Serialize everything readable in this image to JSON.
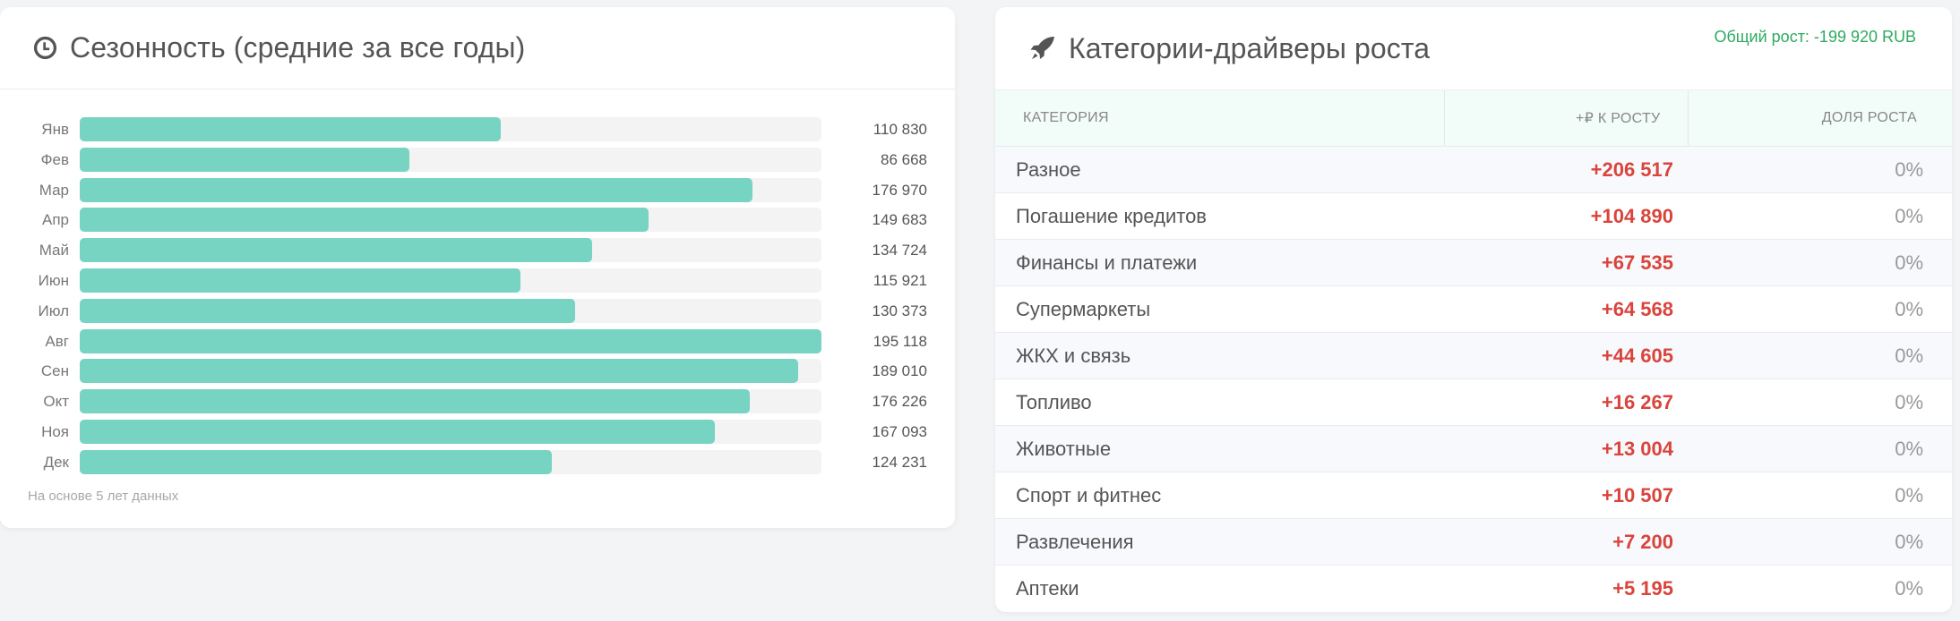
{
  "seasonality": {
    "title": "Сезонность (средние за все годы)",
    "icon": "clock-icon",
    "footnote": "На основе 5 лет данных",
    "bar_color": "#77d3c2",
    "track_color": "#f3f3f3",
    "max_value": 195118,
    "rows": [
      {
        "label": "Янв",
        "value": 110830,
        "display": "110 830"
      },
      {
        "label": "Фев",
        "value": 86668,
        "display": "86 668"
      },
      {
        "label": "Мар",
        "value": 176970,
        "display": "176 970"
      },
      {
        "label": "Апр",
        "value": 149683,
        "display": "149 683"
      },
      {
        "label": "Май",
        "value": 134724,
        "display": "134 724"
      },
      {
        "label": "Июн",
        "value": 115921,
        "display": "115 921"
      },
      {
        "label": "Июл",
        "value": 130373,
        "display": "130 373"
      },
      {
        "label": "Авг",
        "value": 195118,
        "display": "195 118"
      },
      {
        "label": "Сен",
        "value": 189010,
        "display": "189 010"
      },
      {
        "label": "Окт",
        "value": 176226,
        "display": "176 226"
      },
      {
        "label": "Ноя",
        "value": 167093,
        "display": "167 093"
      },
      {
        "label": "Дек",
        "value": 124231,
        "display": "124 231"
      }
    ]
  },
  "drivers": {
    "title": "Категории-драйверы роста",
    "icon": "rocket-icon",
    "total_growth": "Общий рост: -199 920 RUB",
    "total_growth_color": "#2eaa60",
    "amount_color": "#d9443c",
    "columns": [
      "КАТЕГОРИЯ",
      "+₽ К РОСТУ",
      "ДОЛЯ РОСТА"
    ],
    "rows": [
      {
        "category": "Разное",
        "amount": "+206 517",
        "share": "0%"
      },
      {
        "category": "Погашение кредитов",
        "amount": "+104 890",
        "share": "0%"
      },
      {
        "category": "Финансы и платежи",
        "amount": "+67 535",
        "share": "0%"
      },
      {
        "category": "Супермаркеты",
        "amount": "+64 568",
        "share": "0%"
      },
      {
        "category": "ЖКХ и связь",
        "amount": "+44 605",
        "share": "0%"
      },
      {
        "category": "Топливо",
        "amount": "+16 267",
        "share": "0%"
      },
      {
        "category": "Животные",
        "amount": "+13 004",
        "share": "0%"
      },
      {
        "category": "Спорт и фитнес",
        "amount": "+10 507",
        "share": "0%"
      },
      {
        "category": "Развлечения",
        "amount": "+7 200",
        "share": "0%"
      },
      {
        "category": "Аптеки",
        "amount": "+5 195",
        "share": "0%"
      }
    ]
  },
  "chart_data": [
    {
      "type": "bar",
      "orientation": "horizontal",
      "title": "Сезонность (средние за все годы)",
      "categories": [
        "Янв",
        "Фев",
        "Мар",
        "Апр",
        "Май",
        "Июн",
        "Июл",
        "Авг",
        "Сен",
        "Окт",
        "Ноя",
        "Дек"
      ],
      "values": [
        110830,
        86668,
        176970,
        149683,
        134724,
        115921,
        130373,
        195118,
        189010,
        176226,
        167093,
        124231
      ],
      "xlabel": "",
      "ylabel": "",
      "annotations": [
        "На основе 5 лет данных"
      ],
      "grid": false,
      "legend": null
    },
    {
      "type": "table",
      "title": "Категории-драйверы роста",
      "subtitle": "Общий рост: -199 920 RUB",
      "columns": [
        "КАТЕГОРИЯ",
        "+₽ К РОСТУ",
        "ДОЛЯ РОСТА"
      ],
      "rows": [
        [
          "Разное",
          206517,
          "0%"
        ],
        [
          "Погашение кредитов",
          104890,
          "0%"
        ],
        [
          "Финансы и платежи",
          67535,
          "0%"
        ],
        [
          "Супермаркеты",
          64568,
          "0%"
        ],
        [
          "ЖКХ и связь",
          44605,
          "0%"
        ],
        [
          "Топливо",
          16267,
          "0%"
        ],
        [
          "Животные",
          13004,
          "0%"
        ],
        [
          "Спорт и фитнес",
          10507,
          "0%"
        ],
        [
          "Развлечения",
          7200,
          "0%"
        ],
        [
          "Аптеки",
          5195,
          "0%"
        ]
      ]
    }
  ]
}
